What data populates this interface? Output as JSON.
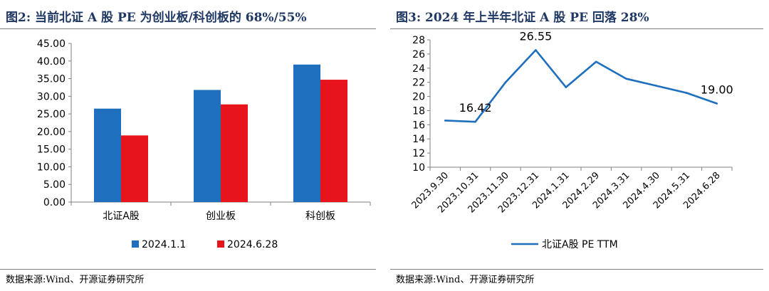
{
  "left": {
    "title": "图2:  当前北证 A 股 PE 为创业板/科创板的 68%/55%",
    "source": "数据来源:Wind、开源证券研究所"
  },
  "right": {
    "title": "图3:  2024 年上半年北证 A 股 PE 回落 28%",
    "source": "数据来源:Wind、开源证券研究所"
  },
  "chart_data": [
    {
      "type": "bar",
      "title": "",
      "xlabel": "",
      "ylabel": "",
      "categories": [
        "北证A股",
        "创业板",
        "科创板"
      ],
      "series": [
        {
          "name": "2024.1.1",
          "values": [
            26.5,
            31.8,
            39.0
          ],
          "color": "#1f6fbf"
        },
        {
          "name": "2024.6.28",
          "values": [
            18.9,
            27.7,
            34.7
          ],
          "color": "#e8141c"
        }
      ],
      "ylim": [
        0,
        45
      ],
      "yticks": [
        "0.00",
        "5.00",
        "10.00",
        "15.00",
        "20.00",
        "25.00",
        "30.00",
        "35.00",
        "40.00",
        "45.00"
      ],
      "grid": false,
      "legend": "bottom"
    },
    {
      "type": "line",
      "title": "",
      "xlabel": "",
      "ylabel": "",
      "x": [
        "2023.9.30",
        "2023.10.31",
        "2023.11.30",
        "2023.12.31",
        "2024.1.31",
        "2024.2.29",
        "2024.3.31",
        "2024.4.30",
        "2024.5.31",
        "2024.6.28"
      ],
      "series": [
        {
          "name": "北证A股 PE TTM",
          "values": [
            16.6,
            16.42,
            22.0,
            26.55,
            21.3,
            24.9,
            22.5,
            21.5,
            20.5,
            19.0
          ],
          "color": "#1f6fbf"
        }
      ],
      "annotations": [
        {
          "index": 1,
          "text": "16.42"
        },
        {
          "index": 3,
          "text": "26.55"
        },
        {
          "index": 9,
          "text": "19.00"
        }
      ],
      "ylim": [
        10,
        28
      ],
      "yticks": [
        "10",
        "12",
        "14",
        "16",
        "18",
        "20",
        "22",
        "24",
        "26",
        "28"
      ],
      "grid": false,
      "legend": "bottom"
    }
  ]
}
